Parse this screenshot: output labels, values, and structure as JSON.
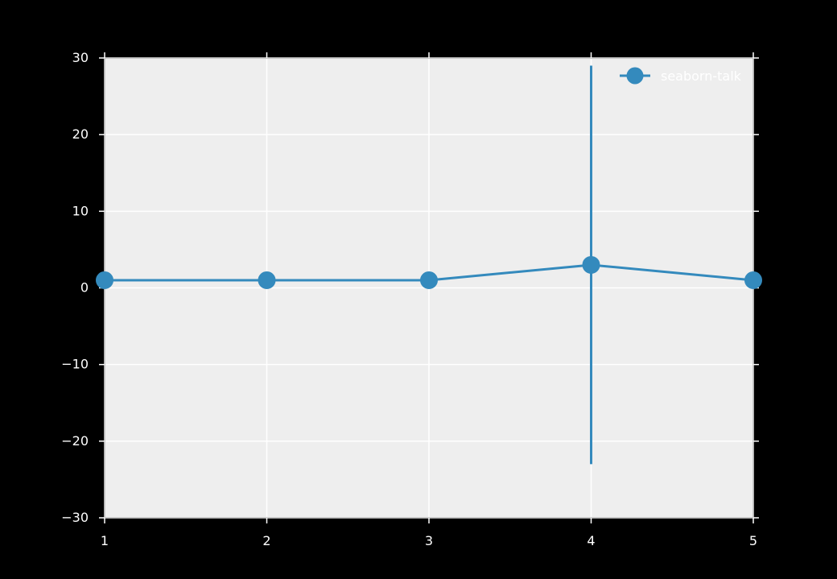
{
  "chart_data": {
    "type": "line",
    "title": "",
    "xlabel": "",
    "ylabel": "",
    "xlim": [
      1,
      5
    ],
    "ylim": [
      -30,
      30
    ],
    "xticks": [
      1,
      2,
      3,
      4,
      5
    ],
    "yticks": [
      -30,
      -20,
      -10,
      0,
      10,
      20,
      30
    ],
    "xtick_labels": [
      "1",
      "2",
      "3",
      "4",
      "5"
    ],
    "ytick_labels": [
      "−30",
      "−20",
      "−10",
      "0",
      "10",
      "20",
      "30"
    ],
    "grid": true,
    "legend_position": "top-right",
    "background_color": "#000000",
    "plot_background_color": "#eeeeee",
    "grid_color": "#ffffff",
    "axis_text_color": "#ffffff",
    "series": [
      {
        "name": "seaborn-talk",
        "color": "#348abd",
        "x": [
          1,
          2,
          3,
          4,
          5
        ],
        "y": [
          1,
          1,
          1,
          3,
          1
        ],
        "error_bars": [
          {
            "x": 4,
            "y": 3,
            "lower": -23,
            "upper": 29
          }
        ]
      }
    ]
  }
}
